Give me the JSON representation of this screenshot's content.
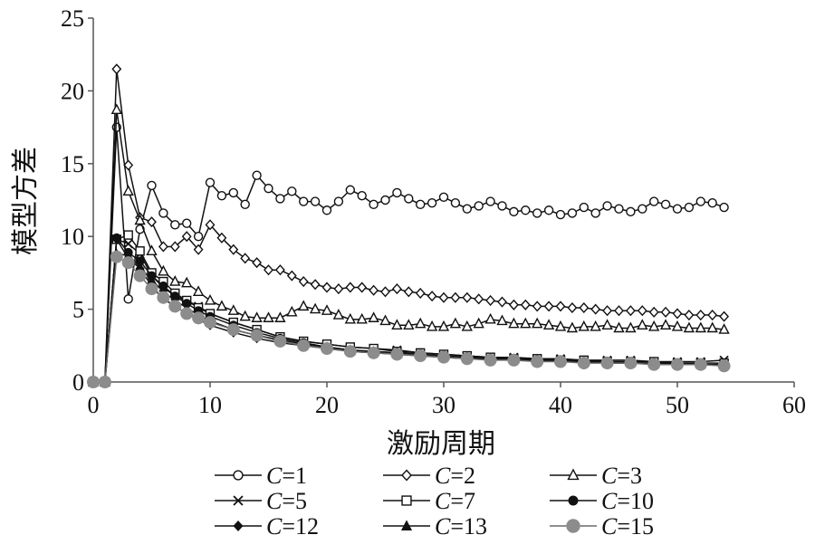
{
  "chart_data": {
    "type": "line",
    "title": "",
    "xlabel": "激励周期",
    "ylabel": "模型方差",
    "xlim": [
      0,
      60
    ],
    "ylim": [
      0,
      25
    ],
    "xticks": [
      0,
      10,
      20,
      30,
      40,
      50,
      60
    ],
    "yticks": [
      0,
      5,
      10,
      15,
      20,
      25
    ],
    "grid": false,
    "legend_position": "bottom",
    "legend_columns": 3,
    "series": [
      {
        "name": "C=1",
        "var": "C",
        "num": "1",
        "marker": "circle-open",
        "x": [
          0,
          1,
          2,
          3,
          4,
          5,
          6,
          7,
          8,
          9,
          10,
          11,
          12,
          13,
          14,
          15,
          16,
          17,
          18,
          19,
          20,
          21,
          22,
          23,
          24,
          25,
          26,
          27,
          28,
          29,
          30,
          31,
          32,
          33,
          34,
          35,
          36,
          37,
          38,
          39,
          40,
          41,
          42,
          43,
          44,
          45,
          46,
          47,
          48,
          49,
          50,
          51,
          52,
          53,
          54
        ],
        "y": [
          0,
          0,
          17.5,
          5.7,
          10.5,
          13.5,
          11.6,
          10.8,
          10.9,
          10.0,
          13.7,
          12.8,
          13.0,
          12.2,
          14.2,
          13.3,
          12.6,
          13.1,
          12.4,
          12.4,
          11.8,
          12.4,
          13.2,
          12.8,
          12.2,
          12.5,
          13.0,
          12.6,
          12.2,
          12.3,
          12.7,
          12.3,
          11.9,
          12.1,
          12.4,
          12.1,
          11.7,
          11.8,
          11.6,
          11.8,
          11.5,
          11.6,
          12.0,
          11.6,
          12.1,
          11.9,
          11.7,
          11.9,
          12.4,
          12.2,
          11.9,
          12.0,
          12.4,
          12.3,
          12.0
        ]
      },
      {
        "name": "C=2",
        "var": "C",
        "num": "2",
        "marker": "diamond-open",
        "x": [
          0,
          1,
          2,
          3,
          4,
          5,
          6,
          7,
          8,
          9,
          10,
          11,
          12,
          13,
          14,
          15,
          16,
          17,
          18,
          19,
          20,
          21,
          22,
          23,
          24,
          25,
          26,
          27,
          28,
          29,
          30,
          31,
          32,
          33,
          34,
          35,
          36,
          37,
          38,
          39,
          40,
          41,
          42,
          43,
          44,
          45,
          46,
          47,
          48,
          49,
          50,
          51,
          52,
          53,
          54
        ],
        "y": [
          0,
          0,
          21.5,
          14.9,
          11.3,
          11.0,
          9.3,
          9.3,
          10.0,
          9.1,
          10.8,
          9.9,
          9.1,
          8.5,
          8.2,
          7.7,
          7.7,
          7.3,
          6.9,
          6.7,
          6.5,
          6.4,
          6.5,
          6.5,
          6.3,
          6.2,
          6.4,
          6.2,
          6.1,
          5.9,
          5.8,
          5.8,
          5.8,
          5.7,
          5.6,
          5.5,
          5.3,
          5.3,
          5.2,
          5.2,
          5.2,
          5.1,
          5.1,
          5.0,
          4.9,
          4.9,
          4.9,
          4.9,
          4.8,
          4.8,
          4.7,
          4.6,
          4.6,
          4.6,
          4.5
        ]
      },
      {
        "name": "C=3",
        "var": "C",
        "num": "3",
        "marker": "triangle-open",
        "x": [
          0,
          1,
          2,
          3,
          4,
          5,
          6,
          7,
          8,
          9,
          10,
          11,
          12,
          13,
          14,
          15,
          16,
          17,
          18,
          19,
          20,
          21,
          22,
          23,
          24,
          25,
          26,
          27,
          28,
          29,
          30,
          31,
          32,
          33,
          34,
          35,
          36,
          37,
          38,
          39,
          40,
          41,
          42,
          43,
          44,
          45,
          46,
          47,
          48,
          49,
          50,
          51,
          52,
          53,
          54
        ],
        "y": [
          0,
          0,
          18.7,
          13.1,
          11.1,
          9.0,
          7.6,
          6.9,
          6.8,
          6.2,
          5.6,
          5.2,
          4.9,
          4.5,
          4.4,
          4.4,
          4.4,
          4.8,
          5.2,
          5.0,
          4.9,
          4.6,
          4.3,
          4.3,
          4.4,
          4.2,
          3.9,
          3.9,
          4.0,
          3.8,
          3.8,
          4.0,
          3.8,
          4.0,
          4.3,
          4.2,
          4.0,
          4.0,
          4.0,
          3.9,
          3.8,
          3.7,
          3.8,
          3.8,
          3.9,
          3.7,
          3.7,
          3.9,
          3.8,
          3.9,
          3.8,
          3.7,
          3.7,
          3.7,
          3.6
        ]
      },
      {
        "name": "C=5",
        "var": "C",
        "num": "5",
        "marker": "cross",
        "x": [
          0,
          1,
          2,
          3,
          4,
          5,
          6,
          7,
          8,
          9,
          10,
          12,
          14,
          16,
          18,
          20,
          22,
          24,
          26,
          28,
          30,
          32,
          34,
          36,
          38,
          40,
          42,
          44,
          46,
          48,
          50,
          52,
          54
        ],
        "y": [
          0,
          0,
          9.8,
          9.5,
          8.8,
          7.3,
          6.5,
          5.9,
          5.6,
          5.2,
          4.7,
          4.1,
          3.6,
          3.1,
          2.8,
          2.6,
          2.4,
          2.3,
          2.2,
          2.0,
          1.9,
          1.8,
          1.7,
          1.7,
          1.6,
          1.6,
          1.5,
          1.5,
          1.5,
          1.4,
          1.4,
          1.4,
          1.5
        ]
      },
      {
        "name": "C=7",
        "var": "C",
        "num": "7",
        "marker": "square-open",
        "x": [
          0,
          1,
          2,
          3,
          4,
          5,
          6,
          7,
          8,
          9,
          10,
          12,
          14,
          16,
          18,
          20,
          22,
          24,
          26,
          28,
          30,
          32,
          34,
          36,
          38,
          40,
          42,
          44,
          46,
          48,
          50,
          52,
          54
        ],
        "y": [
          0,
          0,
          9.8,
          10.1,
          9.0,
          7.5,
          6.9,
          6.1,
          5.6,
          5.1,
          4.7,
          4.1,
          3.6,
          3.1,
          2.8,
          2.6,
          2.4,
          2.3,
          2.1,
          2.0,
          1.9,
          1.8,
          1.7,
          1.6,
          1.6,
          1.5,
          1.5,
          1.4,
          1.4,
          1.4,
          1.3,
          1.3,
          1.3
        ]
      },
      {
        "name": "C=10",
        "var": "C",
        "num": "10",
        "marker": "circle-filled",
        "x": [
          0,
          1,
          2,
          3,
          4,
          5,
          6,
          7,
          8,
          9,
          10,
          12,
          14,
          16,
          18,
          20,
          22,
          24,
          26,
          28,
          30,
          32,
          34,
          36,
          38,
          40,
          42,
          44,
          46,
          48,
          50,
          52,
          54
        ],
        "y": [
          0,
          0,
          9.9,
          8.9,
          8.3,
          7.3,
          6.6,
          5.9,
          5.4,
          4.9,
          4.5,
          3.9,
          3.4,
          3.0,
          2.7,
          2.4,
          2.2,
          2.1,
          2.0,
          1.9,
          1.8,
          1.7,
          1.6,
          1.5,
          1.5,
          1.4,
          1.4,
          1.3,
          1.3,
          1.3,
          1.2,
          1.2,
          1.2
        ]
      },
      {
        "name": "C=12",
        "var": "C",
        "num": "12",
        "marker": "diamond-filled",
        "x": [
          0,
          1,
          2,
          3,
          4,
          5,
          6,
          7,
          8,
          9,
          10,
          12,
          14,
          16,
          18,
          20,
          22,
          24,
          26,
          28,
          30,
          32,
          34,
          36,
          38,
          40,
          42,
          44,
          46,
          48,
          50,
          52,
          54
        ],
        "y": [
          0,
          0,
          9.8,
          8.5,
          7.8,
          6.6,
          5.7,
          5.2,
          4.7,
          4.3,
          3.9,
          3.4,
          3.0,
          2.7,
          2.5,
          2.3,
          2.1,
          2.0,
          1.9,
          1.8,
          1.7,
          1.6,
          1.6,
          1.5,
          1.5,
          1.4,
          1.4,
          1.3,
          1.3,
          1.3,
          1.2,
          1.2,
          1.2
        ]
      },
      {
        "name": "C=13",
        "var": "C",
        "num": "13",
        "marker": "triangle-filled",
        "x": [
          0,
          1,
          2,
          3,
          4,
          5,
          6,
          7,
          8,
          9,
          10,
          12,
          14,
          16,
          18,
          20,
          22,
          24,
          26,
          28,
          30,
          32,
          34,
          36,
          38,
          40,
          42,
          44,
          46,
          48,
          50,
          52,
          54
        ],
        "y": [
          0,
          0,
          8.8,
          8.7,
          7.9,
          7.0,
          6.2,
          5.6,
          5.1,
          4.6,
          4.2,
          3.6,
          3.2,
          2.9,
          2.6,
          2.4,
          2.2,
          2.1,
          2.0,
          1.9,
          1.8,
          1.7,
          1.6,
          1.6,
          1.5,
          1.5,
          1.4,
          1.4,
          1.3,
          1.3,
          1.3,
          1.2,
          1.2
        ]
      },
      {
        "name": "C=15",
        "var": "C",
        "num": "15",
        "marker": "circle-gray",
        "x": [
          0,
          1,
          2,
          3,
          4,
          5,
          6,
          7,
          8,
          9,
          10,
          12,
          14,
          16,
          18,
          20,
          22,
          24,
          26,
          28,
          30,
          32,
          34,
          36,
          38,
          40,
          42,
          44,
          46,
          48,
          50,
          52,
          54
        ],
        "y": [
          0,
          0,
          8.6,
          8.2,
          7.3,
          6.4,
          5.8,
          5.2,
          4.7,
          4.4,
          4.1,
          3.6,
          3.2,
          2.8,
          2.5,
          2.3,
          2.1,
          2.0,
          1.9,
          1.8,
          1.7,
          1.6,
          1.5,
          1.5,
          1.4,
          1.4,
          1.3,
          1.3,
          1.3,
          1.2,
          1.2,
          1.2,
          1.1
        ]
      }
    ]
  }
}
